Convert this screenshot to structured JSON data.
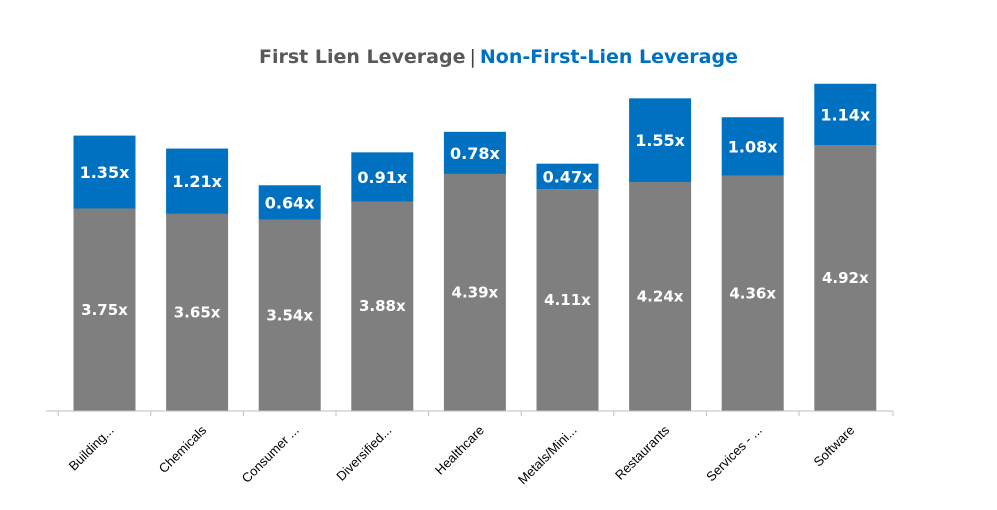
{
  "chart_data": {
    "type": "bar",
    "stacked": true,
    "title": {
      "part1": "First Lien Leverage",
      "separator": "|",
      "part2": "Non-First-Lien Leverage"
    },
    "categories": [
      "Building...",
      "Chemicals",
      "Consumer ...",
      "Diversified...",
      "Healthcare",
      "Metals/Mini...",
      "Restaurants",
      "Services - ...",
      "Software"
    ],
    "series": [
      {
        "name": "First Lien Leverage",
        "values": [
          3.75,
          3.65,
          3.54,
          3.88,
          4.39,
          4.11,
          4.24,
          4.36,
          4.92
        ],
        "labels": [
          "3.75x",
          "3.65x",
          "3.54x",
          "3.88x",
          "4.39x",
          "4.11x",
          "4.24x",
          "4.36x",
          "4.92x"
        ],
        "color": "#7f7f7f"
      },
      {
        "name": "Non-First-Lien Leverage",
        "values": [
          1.35,
          1.21,
          0.64,
          0.91,
          0.78,
          0.47,
          1.55,
          1.08,
          1.14
        ],
        "labels": [
          "1.35x",
          "1.21x",
          "0.64x",
          "0.91x",
          "0.78x",
          "0.47x",
          "1.55x",
          "1.08x",
          "1.14x"
        ],
        "color": "#0070c0"
      }
    ],
    "xlabel": "",
    "ylabel": "",
    "ylim": [
      0,
      6.06
    ],
    "grid": false,
    "legend": "none"
  }
}
